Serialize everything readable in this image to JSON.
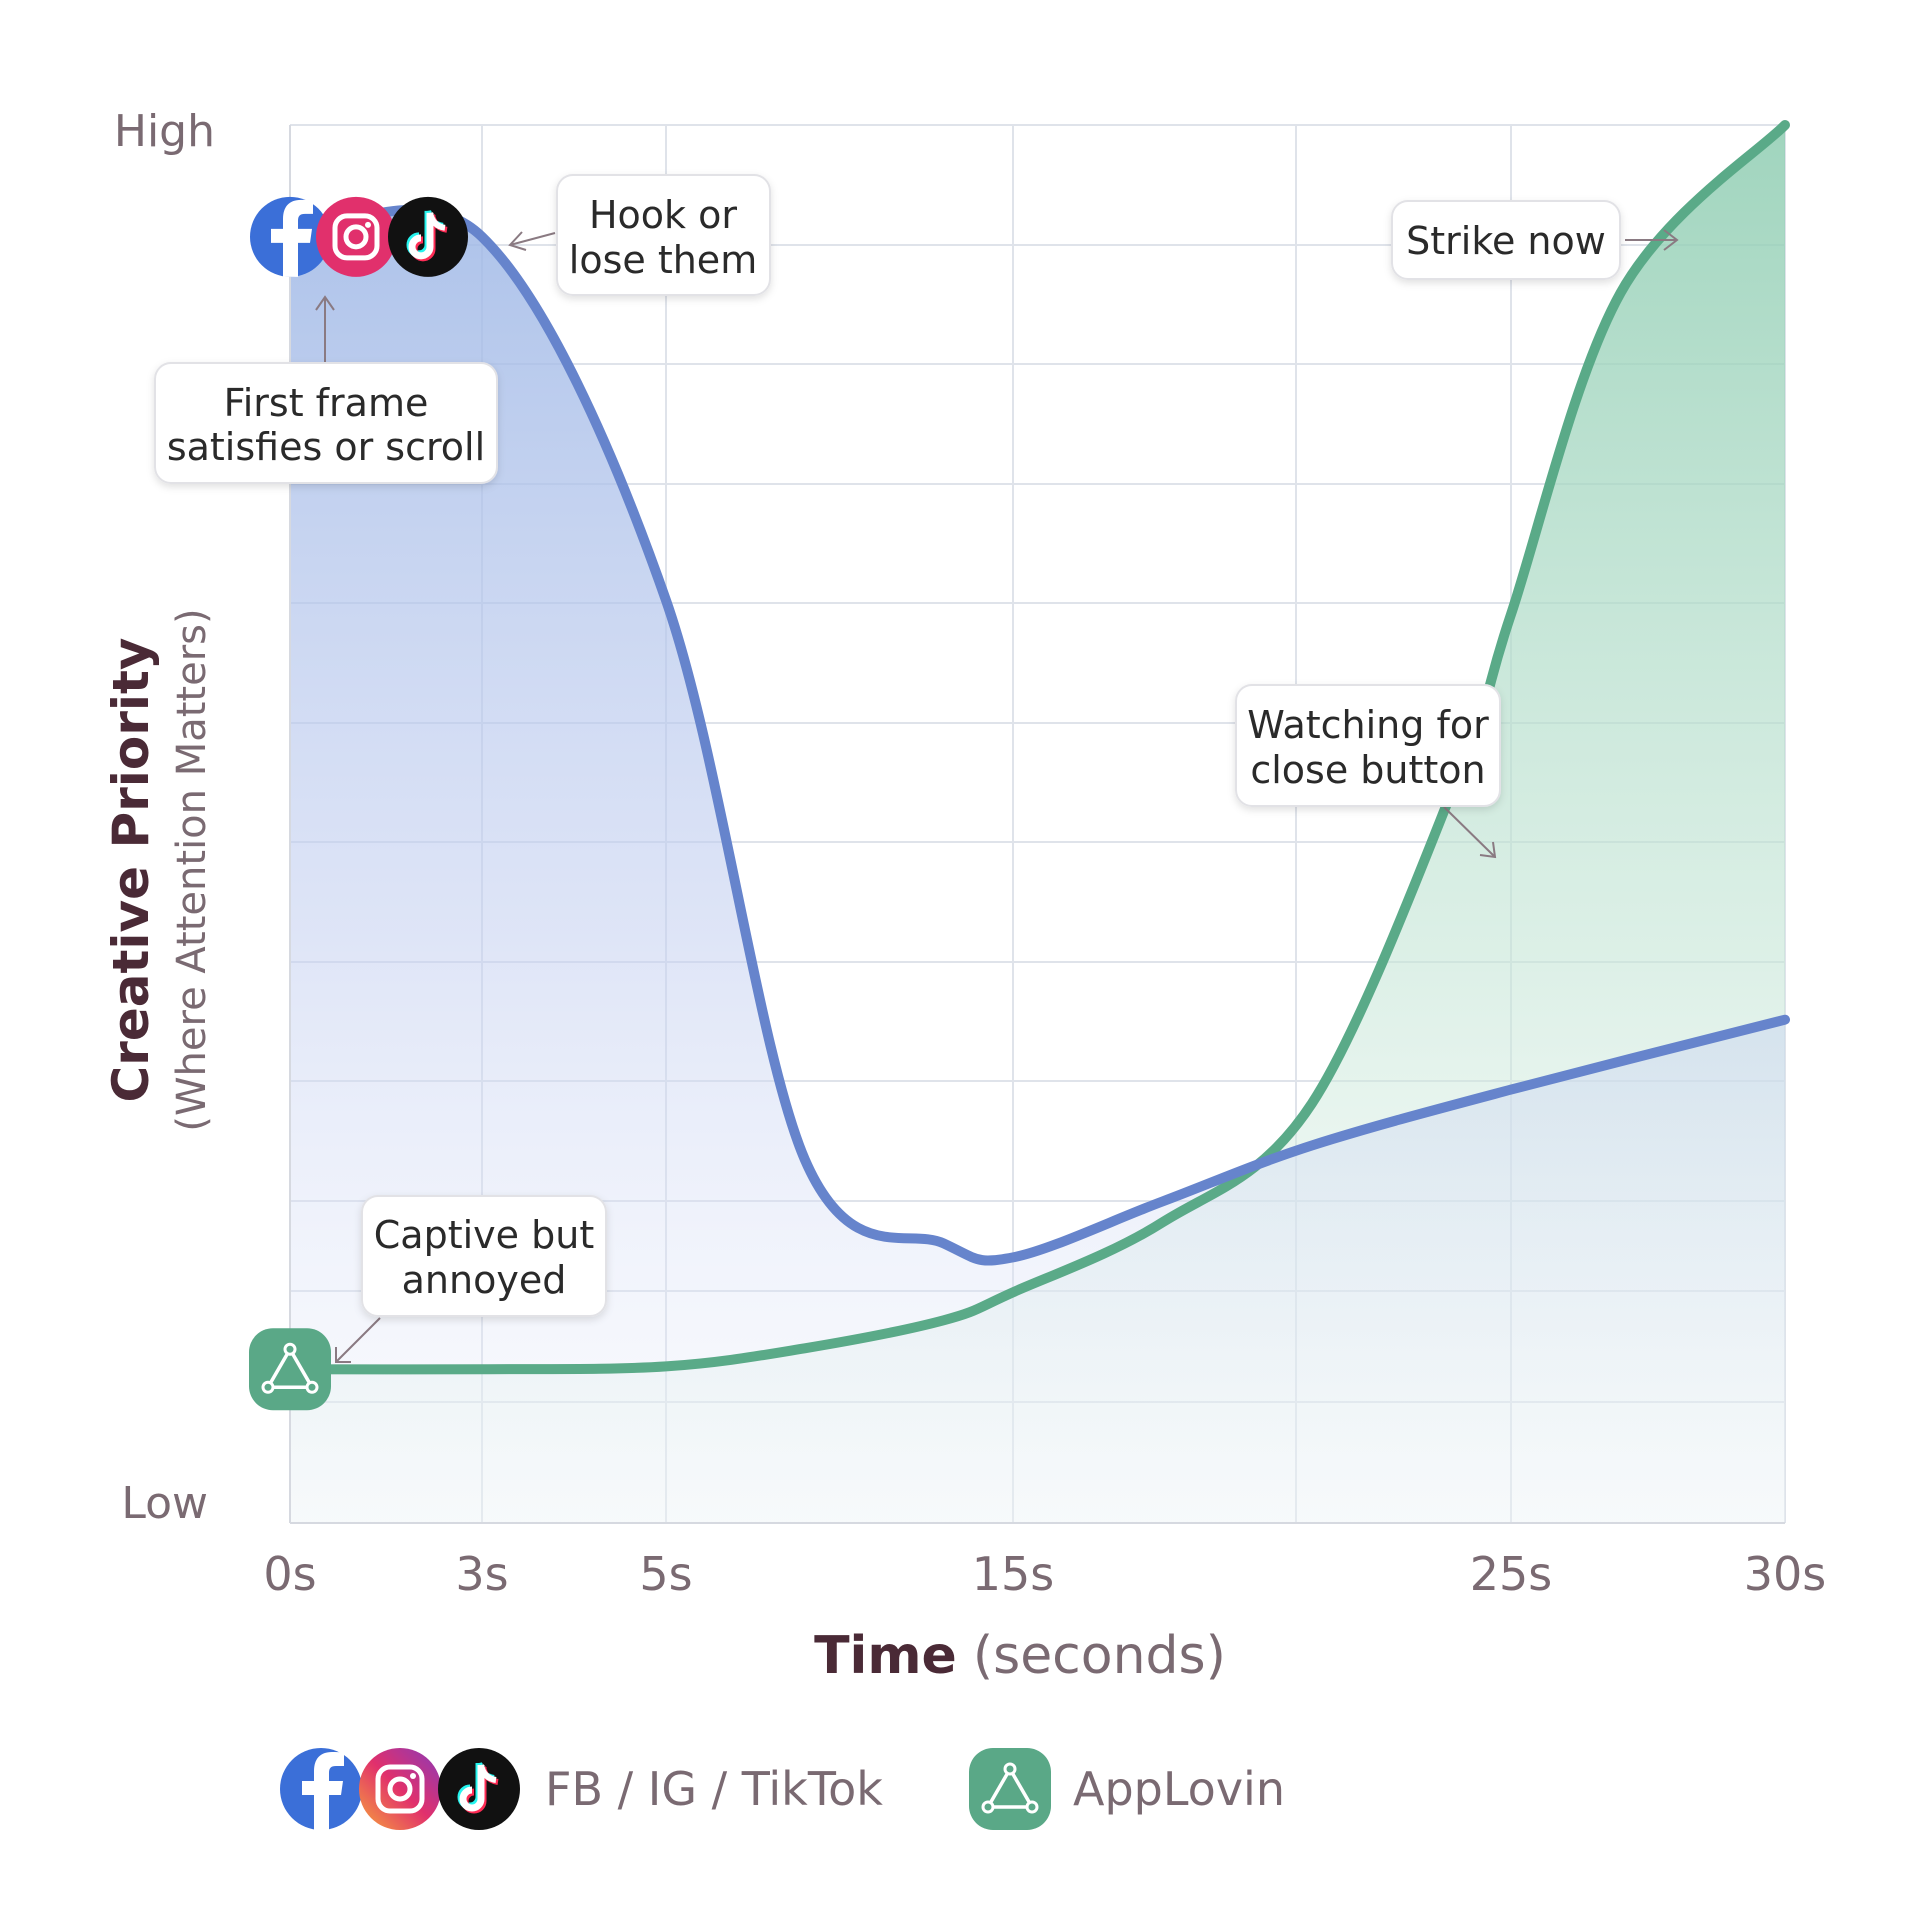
{
  "chart_data": {
    "type": "area",
    "xlabel_bold": "Time",
    "xlabel_rest": "(seconds)",
    "ylabel": "Creative Priority",
    "ylabel_sub": "(Where Attention Matters)",
    "y_ticks": [
      "High",
      "Low"
    ],
    "x_ticks": [
      {
        "value": 0,
        "label": "0s"
      },
      {
        "value": 3,
        "label": "3s"
      },
      {
        "value": 5,
        "label": "5s"
      },
      {
        "value": 15,
        "label": "15s"
      },
      {
        "value": 25,
        "label": "25s"
      },
      {
        "value": 30,
        "label": "30s"
      }
    ],
    "xlim": [
      0,
      30
    ],
    "ylim": [
      0,
      100
    ],
    "grid": true,
    "series": [
      {
        "name": "FB / IG / TikTok",
        "color": "#6684cc",
        "x": [
          0,
          3,
          5,
          9,
          13,
          15,
          18,
          21,
          25,
          30
        ],
        "y": [
          92,
          92,
          66,
          26,
          20,
          19,
          23,
          27,
          31,
          36
        ]
      },
      {
        "name": "AppLovin",
        "color": "#5aaa88",
        "x": [
          0,
          3,
          5,
          9,
          13,
          15,
          18,
          21,
          24,
          25,
          27,
          30
        ],
        "y": [
          11,
          11,
          11.2,
          12.5,
          14.5,
          16.5,
          21.5,
          30,
          54,
          65,
          88,
          100
        ]
      }
    ],
    "annotations": [
      {
        "id": "hook",
        "lines": [
          "Hook or",
          "lose them"
        ]
      },
      {
        "id": "first-frame",
        "lines": [
          "First frame",
          "satisfies or scroll"
        ]
      },
      {
        "id": "strike",
        "lines": [
          "Strike now"
        ]
      },
      {
        "id": "watching",
        "lines": [
          "Watching for",
          "close button"
        ]
      },
      {
        "id": "captive",
        "lines": [
          "Captive but",
          "annoyed"
        ]
      }
    ],
    "legend": {
      "placement": "bottom",
      "items": [
        {
          "label": "FB / IG / TikTok",
          "icons": [
            "facebook-icon",
            "instagram-icon",
            "tiktok-icon"
          ]
        },
        {
          "label": "AppLovin",
          "icons": [
            "applovin-icon"
          ]
        }
      ]
    },
    "colors": {
      "facebook": "#3b6fd8",
      "instagram": "#e1306c",
      "tiktok": "#111111",
      "applovin": "#5aa887",
      "axis_text": "#7a6a72",
      "title_text": "#4a2a36"
    }
  }
}
